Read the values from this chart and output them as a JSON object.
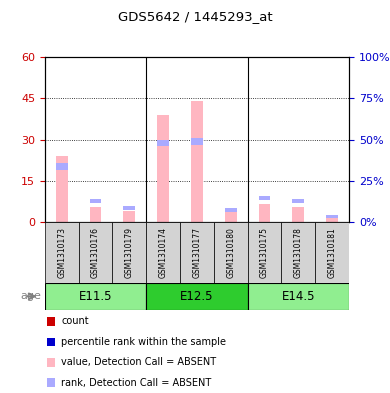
{
  "title": "GDS5642 / 1445293_at",
  "samples": [
    "GSM1310173",
    "GSM1310176",
    "GSM1310179",
    "GSM1310174",
    "GSM1310177",
    "GSM1310180",
    "GSM1310175",
    "GSM1310178",
    "GSM1310181"
  ],
  "groups": [
    {
      "label": "E11.5",
      "indices": [
        0,
        1,
        2
      ],
      "color": "#90EE90"
    },
    {
      "label": "E12.5",
      "indices": [
        3,
        4,
        5
      ],
      "color": "#2ECC2E"
    },
    {
      "label": "E14.5",
      "indices": [
        6,
        7,
        8
      ],
      "color": "#90EE90"
    }
  ],
  "value_absent": [
    24.0,
    5.5,
    4.0,
    39.0,
    44.0,
    4.0,
    6.5,
    5.5,
    2.0
  ],
  "rank_absent_top": [
    19.0,
    7.0,
    4.5,
    27.5,
    28.0,
    3.5,
    8.0,
    7.0,
    1.5
  ],
  "rank_absent_h": [
    2.5,
    1.5,
    1.5,
    2.5,
    2.5,
    1.5,
    1.5,
    1.5,
    1.0
  ],
  "ylim_left": [
    0,
    60
  ],
  "ylim_right": [
    0,
    100
  ],
  "yticks_left": [
    0,
    15,
    30,
    45,
    60
  ],
  "ytick_labels_left": [
    "0",
    "15",
    "30",
    "45",
    "60"
  ],
  "yticks_right": [
    0,
    25,
    50,
    75,
    100
  ],
  "ytick_labels_right": [
    "0%",
    "25%",
    "50%",
    "75%",
    "100%"
  ],
  "bar_width": 0.35,
  "rank_bar_width": 0.35,
  "color_value_absent": "#FFB6C1",
  "color_rank_absent": "#AAAAFF",
  "color_count": "#CC0000",
  "bg_color": "#FFFFFF",
  "label_row_bg": "#D3D3D3",
  "legend_items": [
    {
      "label": "count",
      "color": "#CC0000"
    },
    {
      "label": "percentile rank within the sample",
      "color": "#0000CC"
    },
    {
      "label": "value, Detection Call = ABSENT",
      "color": "#FFB6C1"
    },
    {
      "label": "rank, Detection Call = ABSENT",
      "color": "#AAAAFF"
    }
  ]
}
